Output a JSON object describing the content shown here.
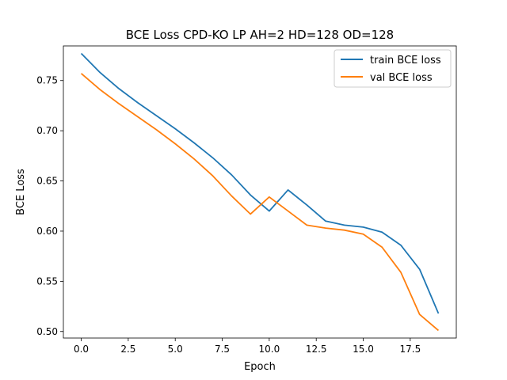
{
  "chart_data": {
    "type": "line",
    "title": "BCE Loss CPD-KO LP AH=2 HD=128 OD=128",
    "xlabel": "Epoch",
    "ylabel": "BCE Loss",
    "x": [
      0,
      1,
      2,
      3,
      4,
      5,
      6,
      7,
      8,
      9,
      10,
      11,
      12,
      13,
      14,
      15,
      16,
      17,
      18,
      19
    ],
    "xlim": [
      -0.95,
      19.95
    ],
    "ylim": [
      0.4935,
      0.7845
    ],
    "xticks": [
      0.0,
      2.5,
      5.0,
      7.5,
      10.0,
      12.5,
      15.0,
      17.5
    ],
    "xtick_labels": [
      "0.0",
      "2.5",
      "5.0",
      "7.5",
      "10.0",
      "12.5",
      "15.0",
      "17.5"
    ],
    "yticks": [
      0.5,
      0.55,
      0.6,
      0.65,
      0.7,
      0.75
    ],
    "ytick_labels": [
      "0.50",
      "0.55",
      "0.60",
      "0.65",
      "0.70",
      "0.75"
    ],
    "grid": false,
    "legend_position": "top-right",
    "series": [
      {
        "name": "train BCE loss",
        "color": "#1f77b4",
        "values": [
          0.777,
          0.758,
          0.742,
          0.728,
          0.715,
          0.702,
          0.688,
          0.673,
          0.656,
          0.636,
          0.62,
          0.641,
          0.626,
          0.61,
          0.606,
          0.604,
          0.599,
          0.586,
          0.562,
          0.518
        ]
      },
      {
        "name": "val BCE loss",
        "color": "#ff7f0e",
        "values": [
          0.757,
          0.741,
          0.727,
          0.714,
          0.701,
          0.687,
          0.672,
          0.655,
          0.635,
          0.617,
          0.634,
          0.62,
          0.606,
          0.603,
          0.601,
          0.597,
          0.584,
          0.559,
          0.517,
          0.501
        ]
      }
    ]
  }
}
